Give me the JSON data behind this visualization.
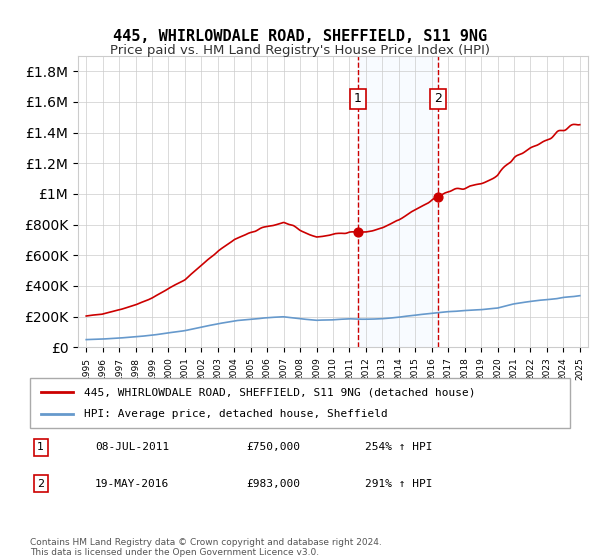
{
  "title": "445, WHIRLOWDALE ROAD, SHEFFIELD, S11 9NG",
  "subtitle": "Price paid vs. HM Land Registry's House Price Index (HPI)",
  "legend_line1": "445, WHIRLOWDALE ROAD, SHEFFIELD, S11 9NG (detached house)",
  "legend_line2": "HPI: Average price, detached house, Sheffield",
  "sale1_date": "08-JUL-2011",
  "sale1_price": 750000,
  "sale1_hpi_pct": "254%",
  "sale2_date": "19-MAY-2016",
  "sale2_price": 983000,
  "sale2_hpi_pct": "291%",
  "copyright": "Contains HM Land Registry data © Crown copyright and database right 2024.\nThis data is licensed under the Open Government Licence v3.0.",
  "sale1_year": 2011.52,
  "sale2_year": 2016.38,
  "red_line_color": "#cc0000",
  "blue_line_color": "#6699cc",
  "shade_color": "#ddeeff",
  "background_color": "#ffffff",
  "grid_color": "#cccccc",
  "ylim": [
    0,
    1900000
  ],
  "xlim_start": 1994.5,
  "xlim_end": 2025.5
}
